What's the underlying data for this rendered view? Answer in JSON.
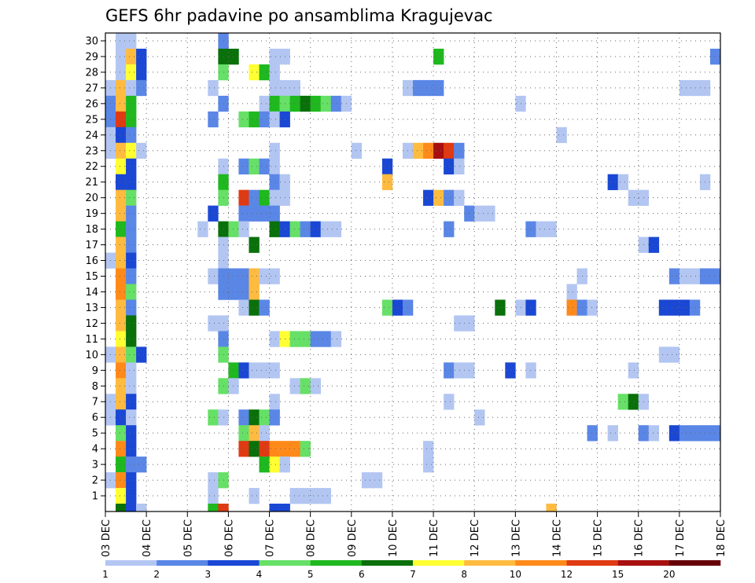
{
  "chart_data": {
    "type": "heatmap",
    "title": "GEFS 6hr padavine po ansamblima Kragujevac",
    "xlabel": "",
    "ylabel": "",
    "x_tick_labels": [
      "03 DEC",
      "04 DEC",
      "05 DEC",
      "06 DEC",
      "07 DEC",
      "08 DEC",
      "09 DEC",
      "10 DEC",
      "11 DEC",
      "12 DEC",
      "13 DEC",
      "14 DEC",
      "15 DEC",
      "16 DEC",
      "17 DEC",
      "18 DEC"
    ],
    "y_tick_labels": [
      "1",
      "2",
      "3",
      "4",
      "5",
      "6",
      "7",
      "8",
      "9",
      "10",
      "11",
      "12",
      "13",
      "14",
      "15",
      "16",
      "17",
      "18",
      "19",
      "20",
      "21",
      "22",
      "23",
      "24",
      "25",
      "26",
      "27",
      "28",
      "29",
      "30"
    ],
    "xlim": [
      0,
      60
    ],
    "ylim": [
      0,
      30
    ],
    "grid": true,
    "time_step_hours": 6,
    "colorbar": {
      "ticks": [
        "1",
        "2",
        "3",
        "4",
        "5",
        "6",
        "7",
        "8",
        "10",
        "12",
        "15",
        "20"
      ],
      "colors": [
        "#b3c6f2",
        "#5a86e6",
        "#1a47d4",
        "#66e066",
        "#1fb81f",
        "#0a700a",
        "#ffff33",
        "#ffbb40",
        "#ff8a1a",
        "#e03a12",
        "#a81010",
        "#660008"
      ]
    },
    "cells": [
      {
        "y": 30,
        "x": [
          1,
          2
        ],
        "c": [
          1,
          1
        ]
      },
      {
        "y": 30,
        "x": [
          11
        ],
        "c": [
          2
        ]
      },
      {
        "y": 29,
        "x": [
          1,
          2,
          3
        ],
        "c": [
          1,
          8,
          3
        ]
      },
      {
        "y": 29,
        "x": [
          11,
          12
        ],
        "c": [
          6,
          6
        ]
      },
      {
        "y": 29,
        "x": [
          16,
          17
        ],
        "c": [
          1,
          1
        ]
      },
      {
        "y": 29,
        "x": [
          32
        ],
        "c": [
          5
        ]
      },
      {
        "y": 29,
        "x": [
          59
        ],
        "c": [
          2
        ]
      },
      {
        "y": 28,
        "x": [
          1,
          2,
          3
        ],
        "c": [
          1,
          7,
          3
        ]
      },
      {
        "y": 28,
        "x": [
          11
        ],
        "c": [
          4
        ]
      },
      {
        "y": 28,
        "x": [
          14,
          15,
          16
        ],
        "c": [
          7,
          5,
          1
        ]
      },
      {
        "y": 27,
        "x": [
          0,
          1,
          2,
          3
        ],
        "c": [
          1,
          8,
          1,
          2
        ]
      },
      {
        "y": 27,
        "x": [
          10
        ],
        "c": [
          1
        ]
      },
      {
        "y": 27,
        "x": [
          16,
          17,
          18
        ],
        "c": [
          1,
          1,
          1
        ]
      },
      {
        "y": 27,
        "x": [
          29,
          30,
          31,
          32
        ],
        "c": [
          1,
          2,
          2,
          2
        ]
      },
      {
        "y": 27,
        "x": [
          56,
          57,
          58
        ],
        "c": [
          1,
          1,
          1
        ]
      },
      {
        "y": 26,
        "x": [
          0,
          1,
          2
        ],
        "c": [
          2,
          8,
          5
        ]
      },
      {
        "y": 26,
        "x": [
          11
        ],
        "c": [
          2
        ]
      },
      {
        "y": 26,
        "x": [
          15,
          16,
          17,
          18,
          19,
          20,
          21,
          22,
          23
        ],
        "c": [
          1,
          5,
          4,
          5,
          6,
          5,
          4,
          2,
          1
        ]
      },
      {
        "y": 26,
        "x": [
          40
        ],
        "c": [
          1
        ]
      },
      {
        "y": 25,
        "x": [
          0,
          1,
          2
        ],
        "c": [
          2,
          10,
          5
        ]
      },
      {
        "y": 25,
        "x": [
          10
        ],
        "c": [
          2
        ]
      },
      {
        "y": 25,
        "x": [
          13,
          14,
          15,
          16,
          17
        ],
        "c": [
          4,
          5,
          2,
          1,
          3
        ]
      },
      {
        "y": 24,
        "x": [
          0,
          1,
          2
        ],
        "c": [
          1,
          3,
          2
        ]
      },
      {
        "y": 24,
        "x": [
          44
        ],
        "c": [
          1
        ]
      },
      {
        "y": 23,
        "x": [
          0,
          1,
          2,
          3
        ],
        "c": [
          1,
          8,
          7,
          1
        ]
      },
      {
        "y": 23,
        "x": [
          16
        ],
        "c": [
          1
        ]
      },
      {
        "y": 23,
        "x": [
          24
        ],
        "c": [
          1
        ]
      },
      {
        "y": 23,
        "x": [
          29,
          30,
          31,
          32,
          33,
          34
        ],
        "c": [
          1,
          8,
          9,
          11,
          10,
          2
        ]
      },
      {
        "y": 22,
        "x": [
          1,
          2
        ],
        "c": [
          7,
          3
        ]
      },
      {
        "y": 22,
        "x": [
          11
        ],
        "c": [
          1
        ]
      },
      {
        "y": 22,
        "x": [
          13,
          14,
          15,
          16
        ],
        "c": [
          2,
          4,
          2,
          1
        ]
      },
      {
        "y": 22,
        "x": [
          27
        ],
        "c": [
          3
        ]
      },
      {
        "y": 22,
        "x": [
          33,
          34
        ],
        "c": [
          3,
          1
        ]
      },
      {
        "y": 21,
        "x": [
          1,
          2
        ],
        "c": [
          3,
          3
        ]
      },
      {
        "y": 21,
        "x": [
          11
        ],
        "c": [
          5
        ]
      },
      {
        "y": 21,
        "x": [
          16,
          17
        ],
        "c": [
          2,
          1
        ]
      },
      {
        "y": 21,
        "x": [
          27
        ],
        "c": [
          8
        ]
      },
      {
        "y": 21,
        "x": [
          49,
          50
        ],
        "c": [
          3,
          1
        ]
      },
      {
        "y": 21,
        "x": [
          58
        ],
        "c": [
          1
        ]
      },
      {
        "y": 20,
        "x": [
          1,
          2
        ],
        "c": [
          8,
          4
        ]
      },
      {
        "y": 20,
        "x": [
          11
        ],
        "c": [
          4
        ]
      },
      {
        "y": 20,
        "x": [
          13,
          14,
          15,
          16,
          17
        ],
        "c": [
          10,
          2,
          5,
          1,
          1
        ]
      },
      {
        "y": 20,
        "x": [
          31,
          32,
          33,
          34
        ],
        "c": [
          3,
          8,
          2,
          1
        ]
      },
      {
        "y": 20,
        "x": [
          51,
          52
        ],
        "c": [
          1,
          1
        ]
      },
      {
        "y": 19,
        "x": [
          1,
          2
        ],
        "c": [
          8,
          2
        ]
      },
      {
        "y": 19,
        "x": [
          10
        ],
        "c": [
          3
        ]
      },
      {
        "y": 19,
        "x": [
          13,
          14,
          15,
          16
        ],
        "c": [
          2,
          2,
          2,
          2
        ]
      },
      {
        "y": 19,
        "x": [
          35,
          36,
          37
        ],
        "c": [
          2,
          1,
          1
        ]
      },
      {
        "y": 18,
        "x": [
          1,
          2
        ],
        "c": [
          5,
          2
        ]
      },
      {
        "y": 18,
        "x": [
          9
        ],
        "c": [
          1
        ]
      },
      {
        "y": 18,
        "x": [
          11,
          12,
          13
        ],
        "c": [
          6,
          4,
          1
        ]
      },
      {
        "y": 18,
        "x": [
          16,
          17,
          18,
          19,
          20,
          21,
          22
        ],
        "c": [
          6,
          3,
          4,
          2,
          3,
          1,
          1
        ]
      },
      {
        "y": 18,
        "x": [
          33
        ],
        "c": [
          2
        ]
      },
      {
        "y": 18,
        "x": [
          41,
          42,
          43
        ],
        "c": [
          2,
          1,
          1
        ]
      },
      {
        "y": 17,
        "x": [
          1,
          2
        ],
        "c": [
          8,
          2
        ]
      },
      {
        "y": 17,
        "x": [
          11
        ],
        "c": [
          1
        ]
      },
      {
        "y": 17,
        "x": [
          14
        ],
        "c": [
          6
        ]
      },
      {
        "y": 17,
        "x": [
          52,
          53
        ],
        "c": [
          1,
          3
        ]
      },
      {
        "y": 16,
        "x": [
          0,
          1,
          2
        ],
        "c": [
          1,
          8,
          3
        ]
      },
      {
        "y": 16,
        "x": [
          11
        ],
        "c": [
          1
        ]
      },
      {
        "y": 15,
        "x": [
          1,
          2
        ],
        "c": [
          9,
          2
        ]
      },
      {
        "y": 15,
        "x": [
          10,
          11,
          12,
          13,
          14,
          15,
          16
        ],
        "c": [
          1,
          2,
          2,
          2,
          8,
          1,
          1
        ]
      },
      {
        "y": 15,
        "x": [
          46
        ],
        "c": [
          1
        ]
      },
      {
        "y": 15,
        "x": [
          55,
          56,
          57,
          58,
          59
        ],
        "c": [
          2,
          1,
          1,
          2,
          2
        ]
      },
      {
        "y": 14,
        "x": [
          1,
          2
        ],
        "c": [
          9,
          4
        ]
      },
      {
        "y": 14,
        "x": [
          11,
          12,
          13,
          14
        ],
        "c": [
          2,
          2,
          2,
          8
        ]
      },
      {
        "y": 14,
        "x": [
          45
        ],
        "c": [
          1
        ]
      },
      {
        "y": 13,
        "x": [
          1,
          2
        ],
        "c": [
          8,
          2
        ]
      },
      {
        "y": 13,
        "x": [
          13,
          14,
          15
        ],
        "c": [
          1,
          6,
          2
        ]
      },
      {
        "y": 13,
        "x": [
          27,
          28,
          29
        ],
        "c": [
          4,
          3,
          2
        ]
      },
      {
        "y": 13,
        "x": [
          38
        ],
        "c": [
          6
        ]
      },
      {
        "y": 13,
        "x": [
          40,
          41
        ],
        "c": [
          1,
          3
        ]
      },
      {
        "y": 13,
        "x": [
          45,
          46,
          47
        ],
        "c": [
          9,
          2,
          1
        ]
      },
      {
        "y": 13,
        "x": [
          54,
          55,
          56,
          57
        ],
        "c": [
          3,
          3,
          3,
          2
        ]
      },
      {
        "y": 12,
        "x": [
          1,
          2
        ],
        "c": [
          8,
          6
        ]
      },
      {
        "y": 12,
        "x": [
          10,
          11
        ],
        "c": [
          1,
          1
        ]
      },
      {
        "y": 12,
        "x": [
          34,
          35
        ],
        "c": [
          1,
          1
        ]
      },
      {
        "y": 11,
        "x": [
          1,
          2
        ],
        "c": [
          7,
          6
        ]
      },
      {
        "y": 11,
        "x": [
          11
        ],
        "c": [
          2
        ]
      },
      {
        "y": 11,
        "x": [
          16,
          17,
          18,
          19,
          20,
          21,
          22
        ],
        "c": [
          1,
          7,
          4,
          4,
          2,
          2,
          1
        ]
      },
      {
        "y": 10,
        "x": [
          0,
          1,
          2,
          3
        ],
        "c": [
          1,
          8,
          4,
          3
        ]
      },
      {
        "y": 10,
        "x": [
          11
        ],
        "c": [
          4
        ]
      },
      {
        "y": 10,
        "x": [
          54,
          55
        ],
        "c": [
          1,
          1
        ]
      },
      {
        "y": 9,
        "x": [
          1,
          2
        ],
        "c": [
          9,
          1
        ]
      },
      {
        "y": 9,
        "x": [
          12,
          13,
          14,
          15,
          16
        ],
        "c": [
          5,
          3,
          1,
          1,
          1
        ]
      },
      {
        "y": 9,
        "x": [
          33,
          34,
          35
        ],
        "c": [
          2,
          1,
          1
        ]
      },
      {
        "y": 9,
        "x": [
          39
        ],
        "c": [
          3
        ]
      },
      {
        "y": 9,
        "x": [
          41
        ],
        "c": [
          1
        ]
      },
      {
        "y": 9,
        "x": [
          51
        ],
        "c": [
          1
        ]
      },
      {
        "y": 8,
        "x": [
          1,
          2
        ],
        "c": [
          8,
          1
        ]
      },
      {
        "y": 8,
        "x": [
          11,
          12
        ],
        "c": [
          4,
          1
        ]
      },
      {
        "y": 8,
        "x": [
          18,
          19,
          20
        ],
        "c": [
          1,
          4,
          1
        ]
      },
      {
        "y": 7,
        "x": [
          0,
          1,
          2
        ],
        "c": [
          1,
          8,
          3
        ]
      },
      {
        "y": 7,
        "x": [
          16
        ],
        "c": [
          1
        ]
      },
      {
        "y": 7,
        "x": [
          33
        ],
        "c": [
          1
        ]
      },
      {
        "y": 7,
        "x": [
          50,
          51,
          52
        ],
        "c": [
          4,
          6,
          1
        ]
      },
      {
        "y": 6,
        "x": [
          0,
          1,
          2
        ],
        "c": [
          1,
          3,
          1
        ]
      },
      {
        "y": 6,
        "x": [
          10,
          11
        ],
        "c": [
          4,
          1
        ]
      },
      {
        "y": 6,
        "x": [
          13,
          14,
          15,
          16
        ],
        "c": [
          2,
          6,
          4,
          2
        ]
      },
      {
        "y": 6,
        "x": [
          36
        ],
        "c": [
          1
        ]
      },
      {
        "y": 5,
        "x": [
          1,
          2
        ],
        "c": [
          4,
          3
        ]
      },
      {
        "y": 5,
        "x": [
          13,
          14,
          15
        ],
        "c": [
          4,
          8,
          1
        ]
      },
      {
        "y": 5,
        "x": [
          47
        ],
        "c": [
          2
        ]
      },
      {
        "y": 5,
        "x": [
          49
        ],
        "c": [
          1
        ]
      },
      {
        "y": 5,
        "x": [
          52,
          53
        ],
        "c": [
          2,
          1
        ]
      },
      {
        "y": 5,
        "x": [
          55,
          56,
          57,
          58,
          59
        ],
        "c": [
          3,
          2,
          2,
          2,
          2
        ]
      },
      {
        "y": 4,
        "x": [
          1,
          2
        ],
        "c": [
          9,
          3
        ]
      },
      {
        "y": 4,
        "x": [
          13,
          14,
          15,
          16,
          17,
          18,
          19
        ],
        "c": [
          10,
          6,
          10,
          9,
          9,
          9,
          4
        ]
      },
      {
        "y": 4,
        "x": [
          31
        ],
        "c": [
          1
        ]
      },
      {
        "y": 3,
        "x": [
          1,
          2,
          3
        ],
        "c": [
          5,
          2,
          2
        ]
      },
      {
        "y": 3,
        "x": [
          15,
          16,
          17
        ],
        "c": [
          5,
          7,
          1
        ]
      },
      {
        "y": 3,
        "x": [
          31
        ],
        "c": [
          1
        ]
      },
      {
        "y": 2,
        "x": [
          0,
          1,
          2
        ],
        "c": [
          1,
          9,
          3
        ]
      },
      {
        "y": 2,
        "x": [
          10,
          11
        ],
        "c": [
          1,
          4
        ]
      },
      {
        "y": 2,
        "x": [
          25,
          26
        ],
        "c": [
          1,
          1
        ]
      },
      {
        "y": 1,
        "x": [
          1,
          2
        ],
        "c": [
          7,
          3
        ]
      },
      {
        "y": 1,
        "x": [
          10
        ],
        "c": [
          1
        ]
      },
      {
        "y": 1,
        "x": [
          14
        ],
        "c": [
          1
        ]
      },
      {
        "y": 1,
        "x": [
          18,
          19,
          20,
          21
        ],
        "c": [
          1,
          1,
          1,
          1
        ]
      },
      {
        "y": 0,
        "x": [
          1,
          2,
          3
        ],
        "c": [
          6,
          3,
          1
        ]
      },
      {
        "y": 0,
        "x": [
          10,
          11
        ],
        "c": [
          5,
          10
        ]
      },
      {
        "y": 0,
        "x": [
          16,
          17
        ],
        "c": [
          3,
          3
        ]
      },
      {
        "y": 0,
        "x": [
          43
        ],
        "c": [
          8
        ]
      }
    ]
  }
}
